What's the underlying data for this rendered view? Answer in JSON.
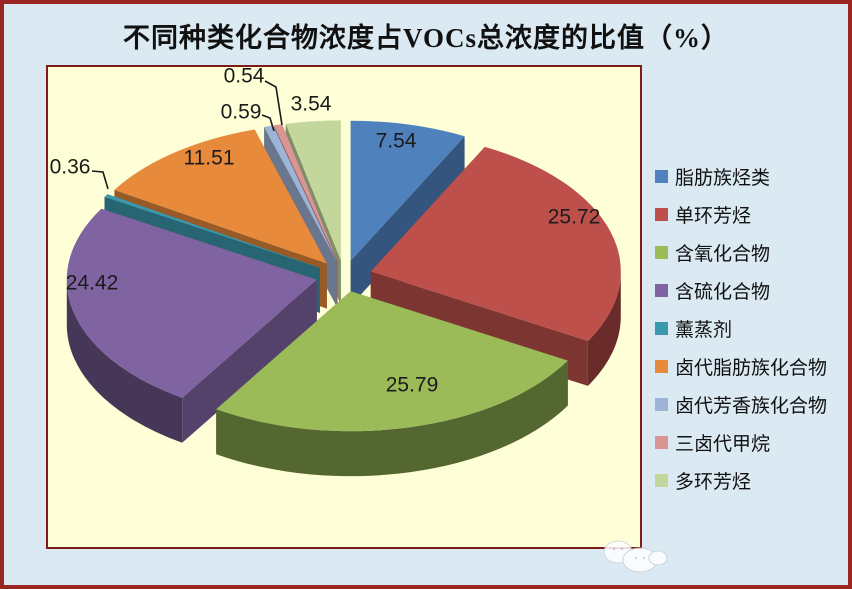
{
  "title": "不同种类化合物浓度占VOCs总浓度的比值（%）",
  "palette": {
    "outer_background": "#DAE9F2",
    "outer_border": "#9B2522",
    "plot_background": "#FFFFD7",
    "plot_border": "#7E1B1B",
    "label_text": "#1b1b1b"
  },
  "watermark": {
    "icon": "clouds-icon"
  },
  "chart_data": {
    "type": "pie",
    "style": "3d-exploded-pie",
    "title": "不同种类化合物浓度占VOCs总浓度的比值（%）",
    "unit": "%",
    "legend_position": "right",
    "start_angle_deg": -90,
    "direction": "clockwise",
    "slices": [
      {
        "label": "脂肪族烃类",
        "value": 7.54,
        "color": "#4F81BD"
      },
      {
        "label": "单环芳烃",
        "value": 25.72,
        "color": "#BE504C"
      },
      {
        "label": "含氧化合物",
        "value": 25.79,
        "color": "#9BBB59"
      },
      {
        "label": "含硫化合物",
        "value": 24.42,
        "color": "#8064A2"
      },
      {
        "label": "薰蒸剂",
        "value": 0.36,
        "color": "#3B99AE"
      },
      {
        "label": "卤代脂肪族化合物",
        "value": 11.51,
        "color": "#E78A3C"
      },
      {
        "label": "卤代芳香族化合物",
        "value": 0.59,
        "color": "#9DB4D6"
      },
      {
        "label": "三卤代甲烷",
        "value": 0.54,
        "color": "#D99694"
      },
      {
        "label": "多环芳烃",
        "value": 3.54,
        "color": "#C3D69B"
      }
    ]
  }
}
